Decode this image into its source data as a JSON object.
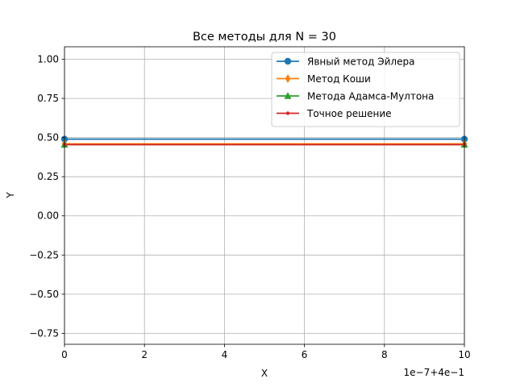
{
  "chart_data": {
    "type": "line",
    "title": "Все методы для N = 30",
    "xlabel": "X",
    "ylabel": "Y",
    "x_offset_label": "1e−7+4e−1",
    "xlim": [
      0,
      10
    ],
    "ylim": [
      -0.82,
      1.08
    ],
    "xticks": [
      0,
      2,
      4,
      6,
      8,
      10
    ],
    "xtick_labels": [
      "0",
      "2",
      "4",
      "6",
      "8",
      "10"
    ],
    "yticks": [
      -0.75,
      -0.5,
      -0.25,
      0.0,
      0.25,
      0.5,
      0.75,
      1.0
    ],
    "ytick_labels": [
      "−0.75",
      "−0.50",
      "−0.25",
      "0.00",
      "0.25",
      "0.50",
      "0.75",
      "1.00"
    ],
    "grid": true,
    "legend_position": "top-right",
    "series": [
      {
        "name": "Явный метод Эйлера",
        "color": "#1f77b4",
        "marker": "circle",
        "x": [
          0,
          10
        ],
        "y": [
          0.49,
          0.49
        ]
      },
      {
        "name": "Метод Коши",
        "color": "#ff7f0e",
        "marker": "thin-diamond",
        "x": [
          0,
          10
        ],
        "y": [
          0.46,
          0.46
        ]
      },
      {
        "name": "Метода Адамса-Мултона",
        "color": "#2ca02c",
        "marker": "triangle",
        "x": [
          0,
          10
        ],
        "y": [
          0.455,
          0.455
        ]
      },
      {
        "name": "Точное решение",
        "color": "#d62728",
        "marker": "point",
        "x": [
          0,
          10
        ],
        "y": [
          0.455,
          0.455
        ]
      }
    ]
  }
}
